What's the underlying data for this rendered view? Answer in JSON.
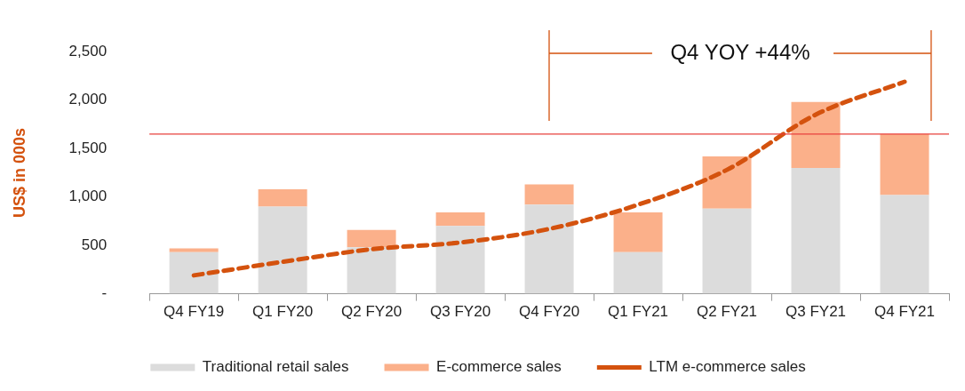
{
  "chart_data": {
    "type": "bar",
    "stacked": true,
    "ylabel": "US$ in 000s",
    "categories": [
      "Q4 FY19",
      "Q1 FY20",
      "Q2 FY20",
      "Q3 FY20",
      "Q4 FY20",
      "Q1 FY21",
      "Q2 FY21",
      "Q3 FY21",
      "Q4 FY21"
    ],
    "series": [
      {
        "name": "Traditional retail sales",
        "color": "#dcdcdc",
        "values": [
          430,
          900,
          480,
          700,
          920,
          430,
          880,
          1300,
          1020
        ]
      },
      {
        "name": "E-commerce sales",
        "color": "#fbb08a",
        "values": [
          40,
          180,
          180,
          140,
          210,
          410,
          540,
          680,
          630
        ]
      },
      {
        "name": "LTM e-commerce sales",
        "type": "line",
        "color": "#d4520e",
        "line_style": "dashed",
        "marker": "none",
        "values": [
          190,
          330,
          460,
          530,
          670,
          920,
          1280,
          1850,
          2190
        ]
      }
    ],
    "ylim": [
      0,
      2500
    ],
    "yticks": [
      {
        "value": 0,
        "label": "-"
      },
      500,
      {
        "value": 1000,
        "label": "1,000"
      },
      {
        "value": 1500,
        "label": "1,500"
      },
      {
        "value": 2000,
        "label": "2,000"
      },
      {
        "value": 2500,
        "label": "2,500"
      }
    ],
    "ref_lines": [
      {
        "axis": "y",
        "value": 1650,
        "color": "#e8413c"
      }
    ],
    "annotations": [
      "Q4 YOY +44%"
    ],
    "grid": false,
    "legend": "bottom"
  }
}
